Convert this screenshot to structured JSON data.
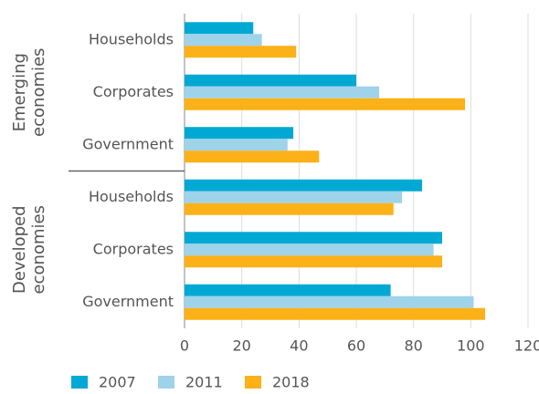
{
  "chart_data": {
    "type": "hbar",
    "groups": [
      "Emerging economies",
      "Developed economies"
    ],
    "categories": [
      "Households",
      "Corporates",
      "Government",
      "Households",
      "Corporates",
      "Government"
    ],
    "series": [
      {
        "name": "2007",
        "color": "#00a9d4",
        "values": [
          24,
          60,
          38,
          83,
          90,
          72
        ]
      },
      {
        "name": "2011",
        "color": "#9ed3ea",
        "values": [
          27,
          68,
          36,
          76,
          87,
          101
        ]
      },
      {
        "name": "2018",
        "color": "#fbb117",
        "values": [
          39,
          98,
          47,
          73,
          90,
          105
        ]
      }
    ],
    "xlim": [
      0,
      120
    ],
    "xticks": [
      0,
      20,
      40,
      60,
      80,
      100,
      120
    ],
    "grid": true
  }
}
